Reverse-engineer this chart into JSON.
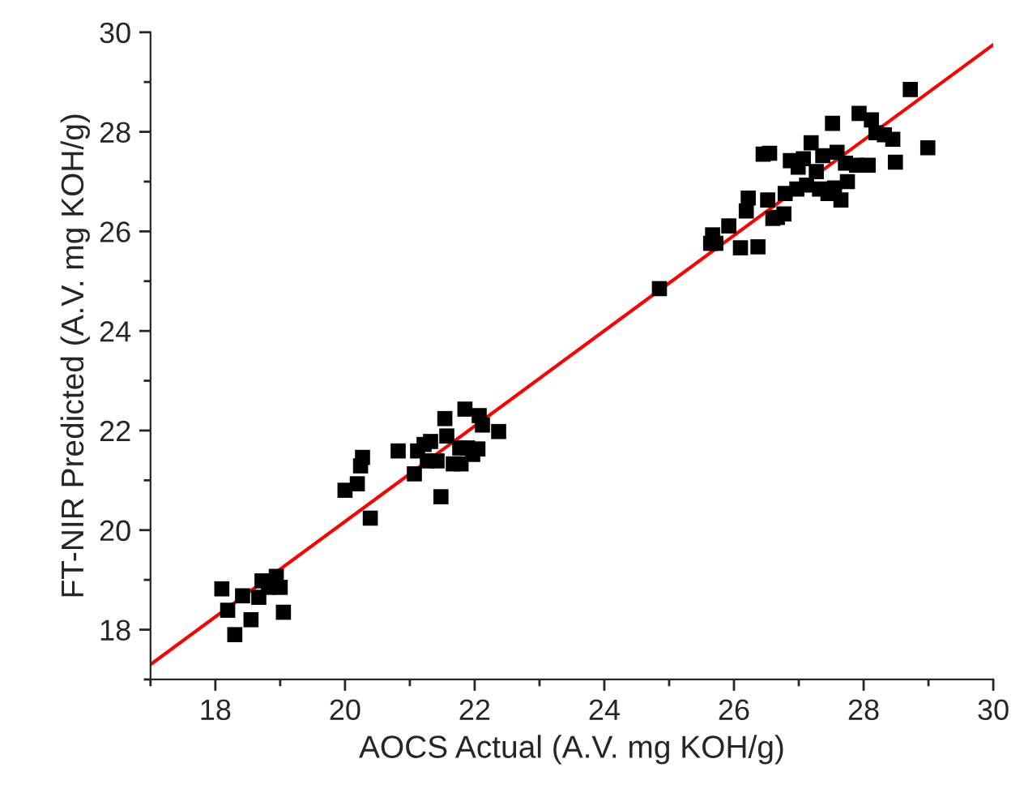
{
  "chart_data": {
    "type": "scatter",
    "xlabel": "AOCS Actual (A.V. mg KOH/g)",
    "ylabel": "FT-NIR Predicted (A.V. mg KOH/g)",
    "xlim": [
      17,
      30
    ],
    "ylim": [
      17,
      30
    ],
    "xticks": [
      {
        "value": 17,
        "label": null
      },
      18,
      {
        "value": 19,
        "label": null
      },
      20,
      {
        "value": 21,
        "label": null
      },
      22,
      {
        "value": 23,
        "label": null
      },
      24,
      {
        "value": 25,
        "label": null
      },
      26,
      {
        "value": 27,
        "label": null
      },
      28,
      {
        "value": 29,
        "label": null
      },
      30
    ],
    "yticks": [
      {
        "value": 17,
        "label": null
      },
      18,
      {
        "value": 19,
        "label": null
      },
      20,
      {
        "value": 21,
        "label": null
      },
      22,
      {
        "value": 23,
        "label": null
      },
      24,
      {
        "value": 25,
        "label": null
      },
      26,
      {
        "value": 27,
        "label": null
      },
      28,
      {
        "value": 29,
        "label": null
      },
      30
    ],
    "grid": false,
    "legend": false,
    "series": [
      {
        "marker": "square",
        "color": "#000000",
        "x": [
          18.1,
          18.19,
          18.3,
          18.42,
          18.55,
          18.67,
          18.72,
          18.82,
          18.94,
          19.0,
          19.05,
          20.0,
          20.19,
          20.24,
          20.27,
          20.39,
          20.82,
          21.07,
          21.12,
          21.22,
          21.32,
          21.27,
          21.42,
          21.48,
          21.54,
          21.57,
          21.67,
          21.79,
          21.85,
          21.89,
          21.97,
          22.05,
          22.07,
          22.12,
          22.37,
          21.77,
          24.85,
          25.64,
          25.67,
          25.72,
          25.92,
          26.1,
          26.19,
          26.22,
          26.37,
          26.45,
          26.55,
          26.52,
          26.6,
          26.67,
          26.77,
          26.79,
          26.87,
          26.99,
          27.07,
          27.12,
          27.19,
          27.27,
          27.32,
          27.37,
          27.45,
          27.52,
          27.55,
          27.59,
          27.65,
          27.72,
          27.75,
          27.89,
          27.93,
          28.07,
          28.12,
          28.19,
          28.32,
          28.45,
          28.49,
          28.72,
          28.99,
          26.97
        ],
        "values": [
          18.82,
          18.39,
          17.9,
          18.68,
          18.2,
          18.65,
          18.98,
          18.85,
          19.07,
          18.85,
          18.35,
          20.8,
          20.93,
          21.29,
          21.46,
          20.24,
          21.59,
          21.13,
          21.59,
          21.72,
          21.78,
          21.39,
          21.39,
          20.67,
          22.24,
          21.89,
          21.33,
          21.33,
          22.43,
          21.65,
          21.52,
          21.63,
          22.3,
          22.11,
          21.98,
          21.65,
          24.85,
          25.76,
          25.93,
          25.76,
          26.11,
          25.67,
          26.41,
          26.67,
          25.69,
          27.55,
          27.57,
          26.63,
          26.26,
          26.28,
          26.35,
          26.76,
          27.42,
          27.29,
          27.46,
          26.93,
          27.78,
          27.2,
          26.85,
          27.52,
          26.76,
          28.17,
          26.87,
          27.59,
          26.63,
          27.37,
          27.0,
          27.33,
          28.37,
          27.33,
          28.24,
          27.98,
          27.94,
          27.85,
          27.39,
          28.85,
          27.68,
          26.85
        ]
      },
      {
        "type": "line",
        "color": "#ff0000",
        "x": [
          17,
          30
        ],
        "values": [
          17.3,
          29.75
        ]
      }
    ]
  }
}
